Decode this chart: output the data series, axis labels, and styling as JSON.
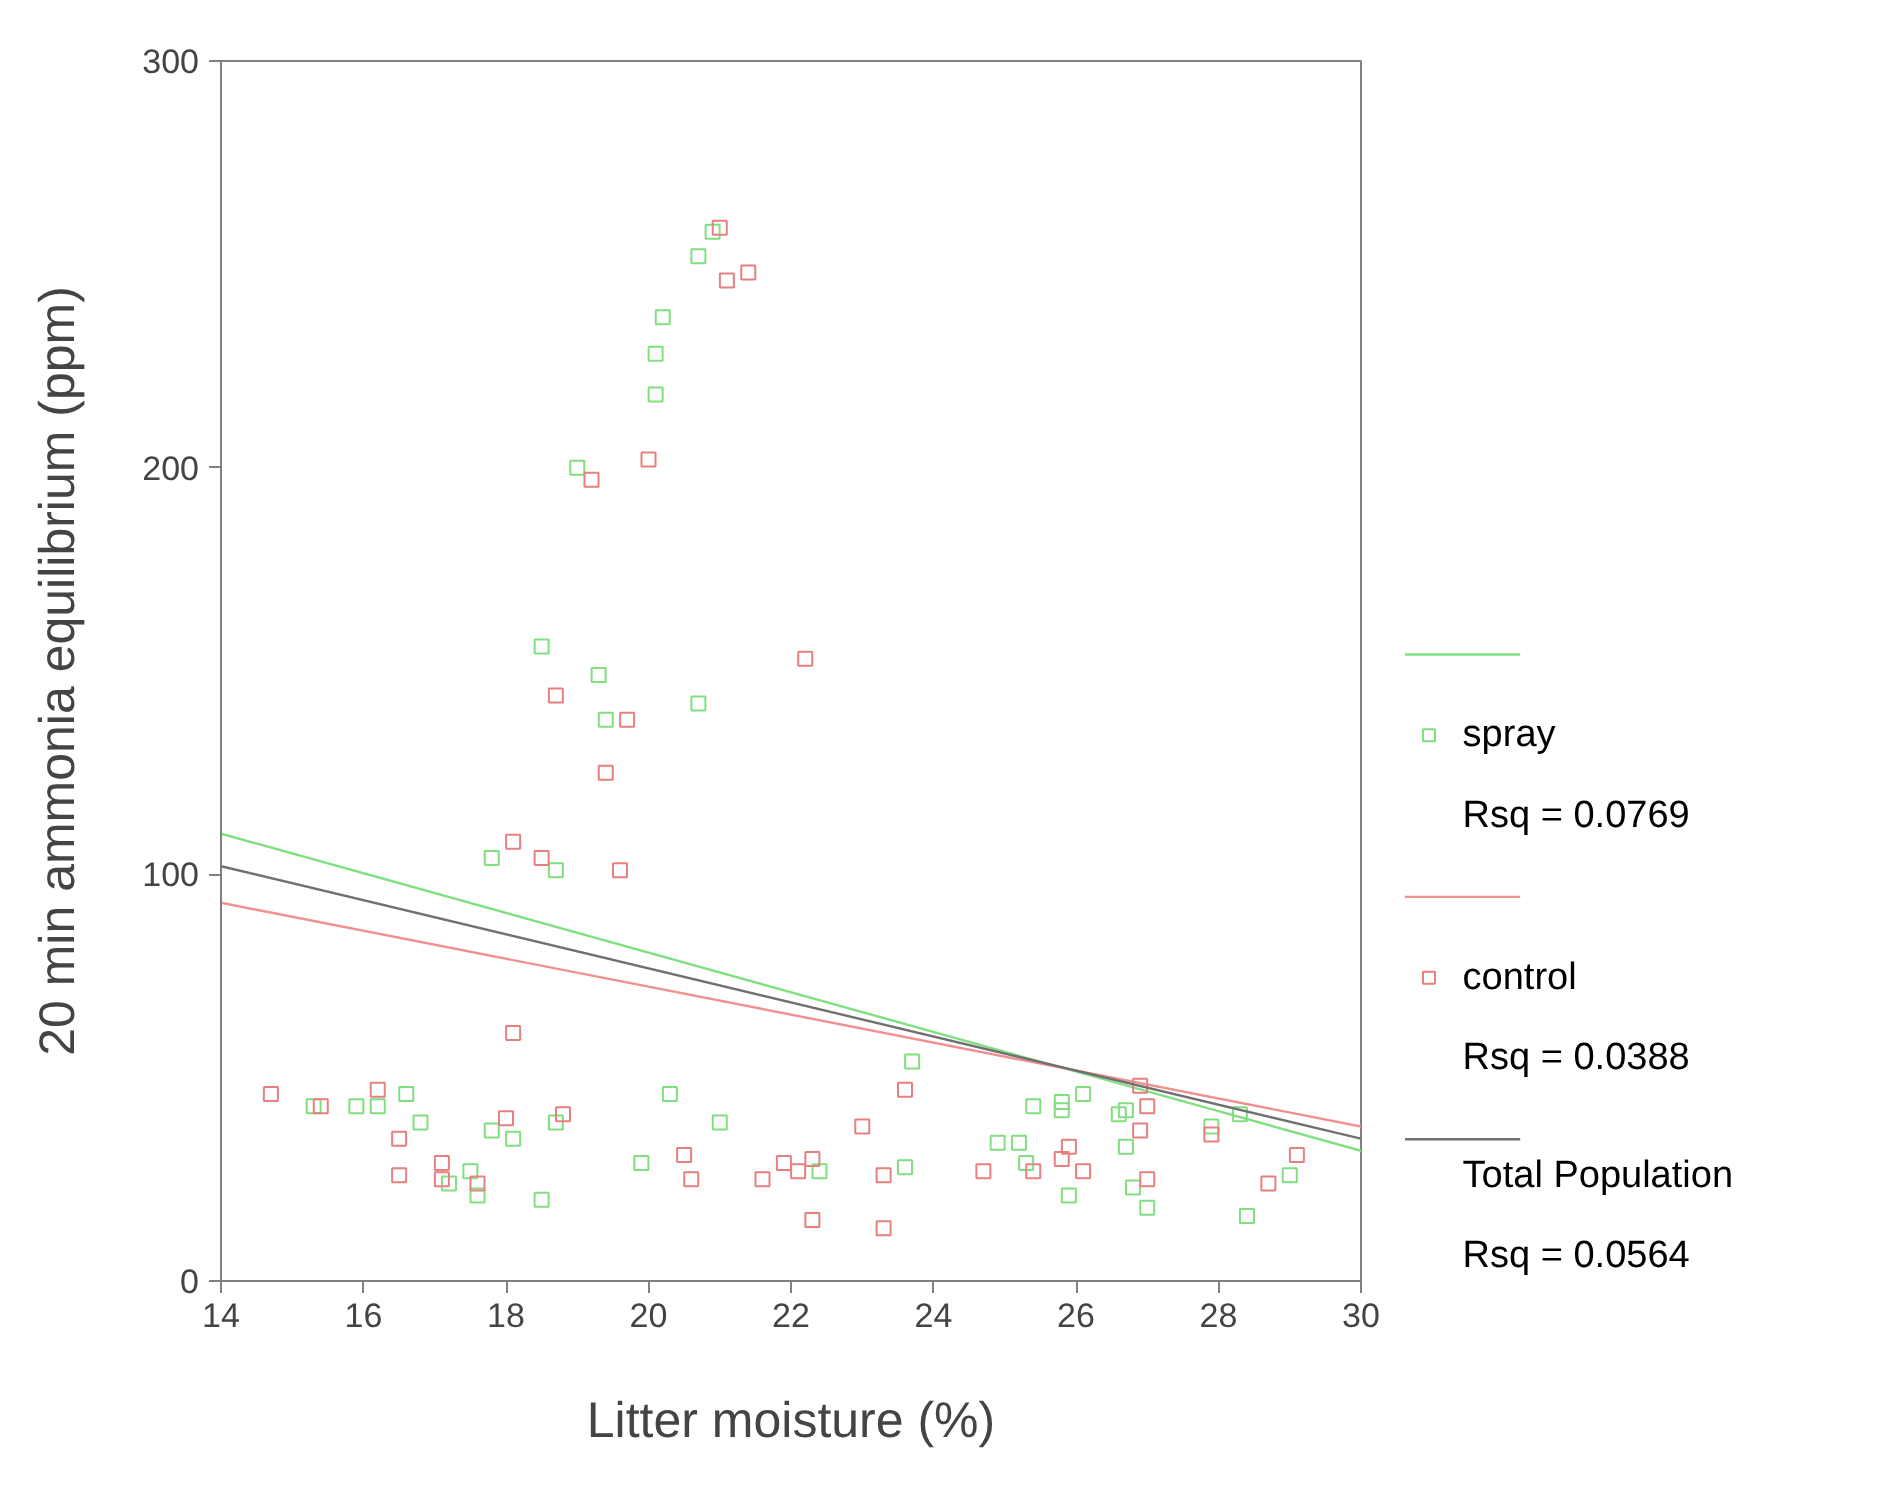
{
  "chart_data": {
    "type": "scatter",
    "xlabel": "Litter moisture (%)",
    "ylabel": "20 min ammonia equilibrium (ppm)",
    "xlim": [
      14,
      30
    ],
    "xticks": [
      14,
      16,
      18,
      20,
      22,
      24,
      26,
      28,
      30
    ],
    "ylim": [
      0,
      300
    ],
    "yticks": [
      0,
      100,
      200,
      300
    ],
    "grid": false,
    "legend": "right",
    "series": [
      {
        "type": "line",
        "color": "#80e080",
        "x": [
          14,
          30
        ],
        "values": [
          110,
          32
        ]
      },
      {
        "name": "spray",
        "marker": "square",
        "color": "#80e080",
        "x": [
          15.3,
          15.9,
          16.2,
          16.6,
          16.8,
          17.2,
          17.5,
          17.6,
          17.8,
          17.8,
          18.1,
          18.5,
          18.5,
          18.7,
          18.7,
          19.0,
          19.3,
          19.4,
          19.9,
          20.1,
          20.1,
          20.2,
          20.3,
          20.7,
          20.7,
          20.9,
          21.0,
          22.4,
          23.6,
          23.7,
          24.9,
          25.2,
          25.3,
          25.4,
          25.8,
          25.8,
          25.9,
          26.1,
          26.6,
          26.7,
          26.7,
          26.8,
          27.0,
          27.9,
          28.3,
          28.4,
          29.0
        ],
        "values": [
          43,
          43,
          43,
          46,
          39,
          24,
          27,
          21,
          37,
          104,
          35,
          20,
          156,
          39,
          101,
          200,
          149,
          138,
          29,
          218,
          228,
          237,
          46,
          252,
          142,
          258,
          39,
          27,
          28,
          54,
          34,
          34,
          29,
          43,
          44,
          42,
          21,
          46,
          41,
          42,
          33,
          23,
          18,
          38,
          41,
          16,
          26
        ]
      },
      {
        "type": "line",
        "color": "#f09090",
        "x": [
          14,
          30
        ],
        "values": [
          93,
          38
        ]
      },
      {
        "name": "control",
        "marker": "square",
        "color": "#e88080",
        "x": [
          14.7,
          15.4,
          16.2,
          16.5,
          16.5,
          17.1,
          17.1,
          17.6,
          18.0,
          18.1,
          18.1,
          18.5,
          18.7,
          18.8,
          19.2,
          19.4,
          19.7,
          19.6,
          20.0,
          20.5,
          20.6,
          21.0,
          21.1,
          21.4,
          21.6,
          21.9,
          22.1,
          22.2,
          22.3,
          22.3,
          23.0,
          23.3,
          23.3,
          23.6,
          24.7,
          25.4,
          25.8,
          25.9,
          26.1,
          26.9,
          26.9,
          27.0,
          27.0,
          27.9,
          28.7,
          29.1
        ],
        "values": [
          46,
          43,
          47,
          35,
          26,
          29,
          25,
          24,
          40,
          108,
          61,
          104,
          144,
          41,
          197,
          125,
          138,
          101,
          202,
          31,
          25,
          259,
          246,
          248,
          25,
          29,
          27,
          153,
          30,
          15,
          38,
          26,
          13,
          47,
          27,
          27,
          30,
          33,
          27,
          48,
          37,
          43,
          25,
          36,
          24,
          31
        ]
      },
      {
        "type": "line",
        "name": "Total Population",
        "color": "#707070",
        "x": [
          14,
          30
        ],
        "values": [
          102,
          35
        ]
      }
    ],
    "annotations": [
      "Rsq = 0.0769",
      "Rsq = 0.0388",
      "Rsq = 0.0564"
    ]
  }
}
